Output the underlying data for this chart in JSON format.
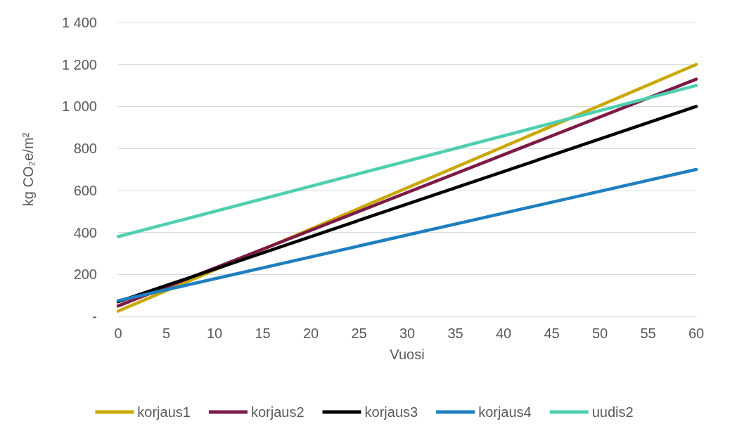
{
  "chart_data": {
    "type": "line",
    "xlabel": "Vuosi",
    "ylabel": "kg CO₂e/m²",
    "x": [
      0,
      60
    ],
    "series": [
      {
        "name": "korjaus1",
        "color": "#c9a800",
        "values": [
          25,
          1200
        ]
      },
      {
        "name": "korjaus2",
        "color": "#7b1a47",
        "values": [
          50,
          1130
        ]
      },
      {
        "name": "korjaus3",
        "color": "#000000",
        "values": [
          70,
          1000
        ]
      },
      {
        "name": "korjaus4",
        "color": "#1f7fc0",
        "values": [
          75,
          700
        ]
      },
      {
        "name": "uudis2",
        "color": "#4fcfb0",
        "values": [
          380,
          1100
        ]
      }
    ],
    "xlim": [
      0,
      60
    ],
    "xticks": [
      0,
      5,
      10,
      15,
      20,
      25,
      30,
      35,
      40,
      45,
      50,
      55,
      60
    ],
    "ylim": [
      0,
      1400
    ],
    "yticks": [
      {
        "value": 0,
        "label": "-"
      },
      200,
      400,
      600,
      800,
      1000,
      1200,
      {
        "value": 1400,
        "label": "1 400"
      }
    ],
    "grid": "y",
    "legend": "bottom",
    "marker": "none",
    "line_style": "solid"
  }
}
